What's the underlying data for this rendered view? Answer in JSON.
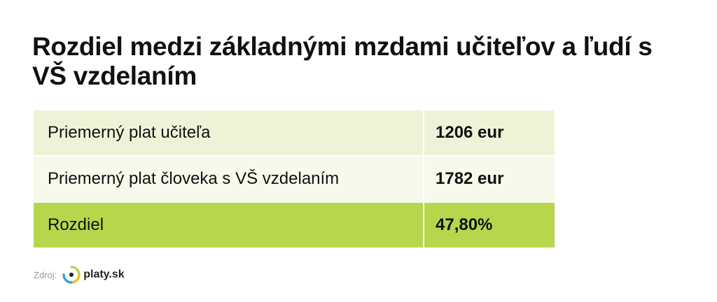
{
  "header": {
    "title": "Rozdiel medzi základnými mzdami učiteľov a ľudí s VŠ vzdelaním"
  },
  "table": {
    "rows": [
      [
        "Priemerný plat učiteľa",
        "1206 eur"
      ],
      [
        "Priemerný plat človeka s VŠ vzdelaním",
        "1782 eur"
      ],
      [
        "Rozdiel",
        "47,80%"
      ]
    ]
  },
  "footer": {
    "source_label": "Zdroj:",
    "brand": "platy.sk"
  }
}
